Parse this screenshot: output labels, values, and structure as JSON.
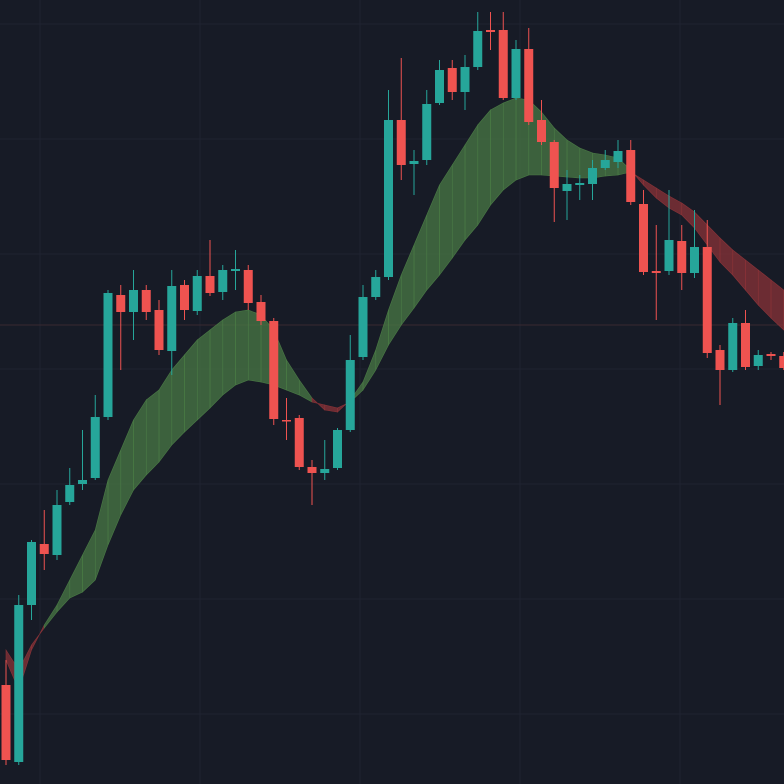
{
  "chart_data": {
    "type": "candlestick",
    "ylim": [
      0,
      784
    ],
    "up_color": "#26a69a",
    "down_color": "#ef5350",
    "ribbon_up_color": "#4a7a45",
    "ribbon_down_color": "#8a3338",
    "open": [
      99,
      22,
      179,
      240,
      229,
      282,
      300,
      306,
      367,
      489,
      472,
      494,
      474,
      433,
      499,
      473,
      508,
      492,
      513,
      514,
      482,
      463,
      364,
      366,
      317,
      311,
      316,
      354,
      427,
      487,
      507,
      664,
      620,
      624,
      681,
      716,
      692,
      717,
      754,
      754,
      686,
      735,
      664,
      642,
      593,
      599,
      600,
      616,
      622,
      634,
      580,
      513,
      513,
      543,
      511,
      537,
      434,
      414,
      461,
      418,
      430,
      428
    ],
    "high": [
      124,
      189,
      244,
      274,
      294,
      316,
      354,
      389,
      494,
      499,
      514,
      499,
      484,
      514,
      504,
      514,
      544,
      519,
      534,
      519,
      489,
      466,
      386,
      369,
      324,
      344,
      356,
      449,
      499,
      514,
      694,
      726,
      634,
      694,
      724,
      724,
      729,
      772,
      772,
      772,
      744,
      756,
      684,
      644,
      614,
      609,
      624,
      634,
      644,
      644,
      594,
      559,
      594,
      559,
      574,
      564,
      439,
      466,
      474,
      434,
      432,
      432
    ],
    "low": [
      19,
      19,
      164,
      214,
      224,
      279,
      294,
      304,
      364,
      414,
      444,
      464,
      429,
      409,
      464,
      469,
      488,
      484,
      494,
      474,
      459,
      359,
      344,
      314,
      279,
      304,
      314,
      352,
      424,
      484,
      504,
      604,
      589,
      619,
      679,
      684,
      674,
      714,
      734,
      684,
      684,
      659,
      639,
      562,
      564,
      584,
      584,
      614,
      616,
      579,
      509,
      464,
      509,
      494,
      506,
      426,
      379,
      412,
      414,
      414,
      424,
      414
    ],
    "close": [
      24,
      179,
      242,
      230,
      279,
      299,
      304,
      367,
      491,
      472,
      494,
      472,
      434,
      498,
      474,
      508,
      491,
      514,
      515,
      481,
      463,
      365,
      363,
      317,
      311,
      315,
      354,
      424,
      487,
      507,
      664,
      619,
      623,
      680,
      714,
      692,
      717,
      753,
      752,
      686,
      735,
      662,
      642,
      596,
      600,
      601,
      616,
      624,
      633,
      582,
      512,
      511,
      544,
      511,
      537,
      431,
      414,
      461,
      417,
      429,
      428,
      416
    ],
    "fast": [
      124,
      94,
      134,
      159,
      179,
      204,
      229,
      254,
      304,
      334,
      364,
      384,
      394,
      414,
      429,
      444,
      454,
      464,
      472,
      474,
      469,
      454,
      424,
      404,
      386,
      374,
      372,
      384,
      402,
      434,
      474,
      509,
      539,
      569,
      599,
      619,
      639,
      659,
      674,
      681,
      686,
      684,
      672,
      656,
      644,
      636,
      631,
      629,
      626,
      614,
      599,
      586,
      576,
      569,
      556,
      539,
      522,
      509,
      494,
      479,
      466,
      454
    ],
    "slow": [
      134,
      114,
      139,
      156,
      172,
      186,
      192,
      204,
      239,
      269,
      294,
      309,
      322,
      339,
      352,
      364,
      376,
      389,
      399,
      404,
      402,
      399,
      394,
      389,
      382,
      379,
      376,
      382,
      394,
      414,
      439,
      459,
      476,
      494,
      509,
      526,
      544,
      559,
      579,
      594,
      604,
      609,
      609,
      608,
      607,
      606,
      606,
      608,
      609,
      612,
      604,
      596,
      588,
      581,
      572,
      559,
      546,
      534,
      524,
      514,
      504,
      494
    ]
  }
}
